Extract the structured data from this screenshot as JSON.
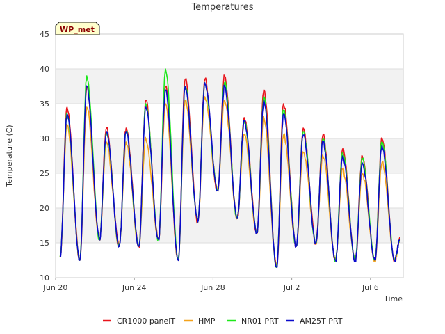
{
  "chart_data": {
    "type": "line",
    "title": "Temperatures",
    "site_label": "WP_met",
    "xlabel": "Time",
    "ylabel": "Temperature (C)",
    "ylim": [
      10,
      45
    ],
    "yticks": [
      10,
      15,
      20,
      25,
      30,
      35,
      40,
      45
    ],
    "xlim": [
      "2023-06-20",
      "2023-07-07 16:00"
    ],
    "xticks": [
      {
        "date": "2023-06-20",
        "label": "Jun 20"
      },
      {
        "date": "2023-06-24",
        "label": "Jun 24"
      },
      {
        "date": "2023-06-28",
        "label": "Jun 28"
      },
      {
        "date": "2023-07-02",
        "label": "Jul 2"
      },
      {
        "date": "2023-07-06",
        "label": "Jul 6"
      }
    ],
    "grid": true,
    "alternating_bands": true,
    "legend_position": "bottom",
    "daily_minima": [
      {
        "date": "2023-06-20",
        "value": 13
      },
      {
        "date": "2023-06-21",
        "value": 12.5
      },
      {
        "date": "2023-06-22",
        "value": 15.5
      },
      {
        "date": "2023-06-23",
        "value": 14.5
      },
      {
        "date": "2023-06-24",
        "value": 14.5
      },
      {
        "date": "2023-06-25",
        "value": 15.5
      },
      {
        "date": "2023-06-26",
        "value": 12.5
      },
      {
        "date": "2023-06-27",
        "value": 18
      },
      {
        "date": "2023-06-28",
        "value": 22.5
      },
      {
        "date": "2023-06-29",
        "value": 18.5
      },
      {
        "date": "2023-06-30",
        "value": 16.5
      },
      {
        "date": "2023-07-01",
        "value": 11.5
      },
      {
        "date": "2023-07-02",
        "value": 14.5
      },
      {
        "date": "2023-07-03",
        "value": 15
      },
      {
        "date": "2023-07-04",
        "value": 12.5
      },
      {
        "date": "2023-07-05",
        "value": 12.5
      },
      {
        "date": "2023-07-06",
        "value": 12.5
      },
      {
        "date": "2023-07-07",
        "value": 12.5
      },
      {
        "date": "2023-07-07 12:00",
        "value": 15.5
      }
    ],
    "series": [
      {
        "name": "CR1000 panelT",
        "color": "#e8141b",
        "daily_maxima": [
          {
            "date": "2023-06-20",
            "value": 34.5
          },
          {
            "date": "2023-06-21",
            "value": 37.5
          },
          {
            "date": "2023-06-22",
            "value": 31.5
          },
          {
            "date": "2023-06-23",
            "value": 31.5
          },
          {
            "date": "2023-06-24",
            "value": 35.5
          },
          {
            "date": "2023-06-25",
            "value": 37.5
          },
          {
            "date": "2023-06-26",
            "value": 38.5
          },
          {
            "date": "2023-06-27",
            "value": 38.5
          },
          {
            "date": "2023-06-28",
            "value": 39
          },
          {
            "date": "2023-06-29",
            "value": 33
          },
          {
            "date": "2023-06-30",
            "value": 37
          },
          {
            "date": "2023-07-01",
            "value": 35
          },
          {
            "date": "2023-07-02",
            "value": 31.5
          },
          {
            "date": "2023-07-03",
            "value": 30.5
          },
          {
            "date": "2023-07-04",
            "value": 28.5
          },
          {
            "date": "2023-07-05",
            "value": 27.5
          },
          {
            "date": "2023-07-06",
            "value": 30
          }
        ]
      },
      {
        "name": "HMP",
        "color": "#f4a21b",
        "daily_maxima": [
          {
            "date": "2023-06-20",
            "value": 32
          },
          {
            "date": "2023-06-21",
            "value": 34.5
          },
          {
            "date": "2023-06-22",
            "value": 29.5
          },
          {
            "date": "2023-06-23",
            "value": 29.5
          },
          {
            "date": "2023-06-24",
            "value": 30
          },
          {
            "date": "2023-06-25",
            "value": 35
          },
          {
            "date": "2023-06-26",
            "value": 35.5
          },
          {
            "date": "2023-06-27",
            "value": 36
          },
          {
            "date": "2023-06-28",
            "value": 35.5
          },
          {
            "date": "2023-06-29",
            "value": 30.5
          },
          {
            "date": "2023-06-30",
            "value": 33
          },
          {
            "date": "2023-07-01",
            "value": 30.5
          },
          {
            "date": "2023-07-02",
            "value": 28
          },
          {
            "date": "2023-07-03",
            "value": 27.5
          },
          {
            "date": "2023-07-04",
            "value": 25.5
          },
          {
            "date": "2023-07-05",
            "value": 25
          },
          {
            "date": "2023-07-06",
            "value": 26.5
          }
        ]
      },
      {
        "name": "NR01 PRT",
        "color": "#1ee81b",
        "daily_maxima": [
          {
            "date": "2023-06-20",
            "value": 33.5
          },
          {
            "date": "2023-06-21",
            "value": 39
          },
          {
            "date": "2023-06-22",
            "value": 31
          },
          {
            "date": "2023-06-23",
            "value": 31
          },
          {
            "date": "2023-06-24",
            "value": 35
          },
          {
            "date": "2023-06-25",
            "value": 40
          },
          {
            "date": "2023-06-26",
            "value": 37.5
          },
          {
            "date": "2023-06-27",
            "value": 38
          },
          {
            "date": "2023-06-28",
            "value": 38
          },
          {
            "date": "2023-06-29",
            "value": 32.5
          },
          {
            "date": "2023-06-30",
            "value": 36
          },
          {
            "date": "2023-07-01",
            "value": 34
          },
          {
            "date": "2023-07-02",
            "value": 31
          },
          {
            "date": "2023-07-03",
            "value": 30
          },
          {
            "date": "2023-07-04",
            "value": 28
          },
          {
            "date": "2023-07-05",
            "value": 27
          },
          {
            "date": "2023-07-06",
            "value": 29.5
          }
        ]
      },
      {
        "name": "AM25T PRT",
        "color": "#0a0acc",
        "daily_maxima": [
          {
            "date": "2023-06-20",
            "value": 33.5
          },
          {
            "date": "2023-06-21",
            "value": 37.5
          },
          {
            "date": "2023-06-22",
            "value": 31
          },
          {
            "date": "2023-06-23",
            "value": 31
          },
          {
            "date": "2023-06-24",
            "value": 34.5
          },
          {
            "date": "2023-06-25",
            "value": 37
          },
          {
            "date": "2023-06-26",
            "value": 37.5
          },
          {
            "date": "2023-06-27",
            "value": 38
          },
          {
            "date": "2023-06-28",
            "value": 37.5
          },
          {
            "date": "2023-06-29",
            "value": 32.5
          },
          {
            "date": "2023-06-30",
            "value": 35.5
          },
          {
            "date": "2023-07-01",
            "value": 33.5
          },
          {
            "date": "2023-07-02",
            "value": 30.5
          },
          {
            "date": "2023-07-03",
            "value": 29.5
          },
          {
            "date": "2023-07-04",
            "value": 27.5
          },
          {
            "date": "2023-07-05",
            "value": 26.5
          },
          {
            "date": "2023-07-06",
            "value": 29
          }
        ]
      }
    ]
  }
}
